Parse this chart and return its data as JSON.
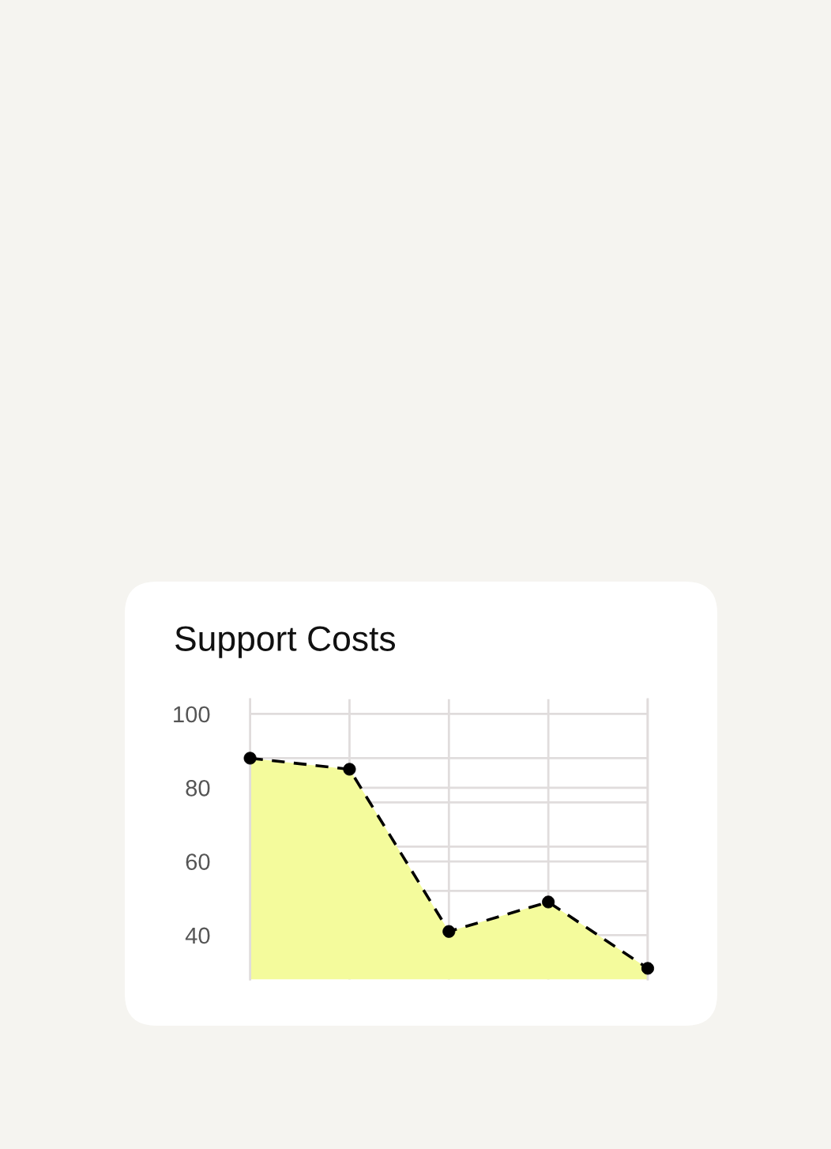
{
  "chart_data": {
    "type": "area",
    "title": "Support Costs",
    "categories": [
      null,
      null,
      null,
      null,
      null
    ],
    "series": [
      {
        "color": "#f4fb9c",
        "values": [
          88,
          85,
          41,
          49,
          31
        ]
      }
    ],
    "marker": "circle",
    "line_style": "dashed",
    "ylim": [
      28,
      104
    ],
    "yticks": [
      100,
      {
        "value": 88,
        "label": null
      },
      80,
      {
        "value": 76,
        "label": null
      },
      {
        "value": 64,
        "label": null
      },
      60,
      {
        "value": 52,
        "label": null
      },
      40
    ],
    "grid": true,
    "tick_labels": "y"
  }
}
